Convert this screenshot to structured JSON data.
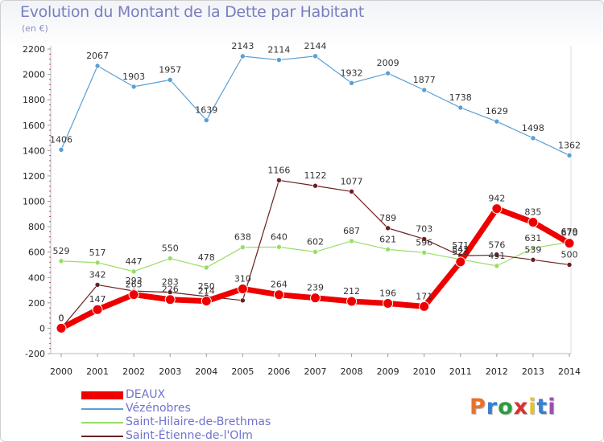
{
  "header": {
    "title": "Evolution du Montant de la Dette par Habitant",
    "unit": "(en €)"
  },
  "logo": {
    "text": "Proxiti",
    "letter_colors": [
      "#e8722c",
      "#3a7fd0",
      "#2c9b3e",
      "#d8322f",
      "#e8c02c",
      "#3a7fd0",
      "#9b4fb0"
    ]
  },
  "chart_data": {
    "type": "line",
    "title": "Evolution du Montant de la Dette par Habitant",
    "ylabel": "(en €)",
    "xlabel": "",
    "x": [
      "2000",
      "2001",
      "2002",
      "2003",
      "2004",
      "2005",
      "2006",
      "2007",
      "2008",
      "2009",
      "2010",
      "2011",
      "2012",
      "2013",
      "2014"
    ],
    "yticks": [
      "-200",
      "0",
      "200",
      "400",
      "600",
      "800",
      "1000",
      "1200",
      "1400",
      "1600",
      "1800",
      "2000",
      "2200"
    ],
    "ylim": [
      -200,
      2200
    ],
    "grid": false,
    "legend_position": "bottom-left",
    "series": [
      {
        "name": "DEAUX",
        "color": "#ee0000",
        "values": [
          0,
          147,
          265,
          226,
          214,
          310,
          264,
          239,
          212,
          196,
          171,
          523,
          942,
          835,
          670
        ],
        "labels": [
          "0",
          "147",
          "265",
          "226",
          "214",
          "310",
          "264",
          "239",
          "212",
          "196",
          "171",
          "523",
          "942",
          "835",
          "670"
        ]
      },
      {
        "name": "Vézénobres",
        "color": "#5a9fd4",
        "values": [
          1406,
          2067,
          1903,
          1957,
          1639,
          2143,
          2114,
          2144,
          1932,
          2009,
          1877,
          1738,
          1629,
          1498,
          1362
        ],
        "labels": [
          "1406",
          "2067",
          "1903",
          "1957",
          "1639",
          "2143",
          "2114",
          "2144",
          "1932",
          "2009",
          "1877",
          "1738",
          "1629",
          "1498",
          "1362"
        ]
      },
      {
        "name": "Saint-Hilaire-de-Brethmas",
        "color": "#99dd66",
        "values": [
          529,
          517,
          447,
          550,
          478,
          638,
          640,
          602,
          687,
          621,
          596,
          542,
          491,
          631,
          679
        ],
        "labels": [
          "529",
          "517",
          "447",
          "550",
          "478",
          "638",
          "640",
          "602",
          "687",
          "621",
          "596",
          "542",
          "491",
          "631",
          "679"
        ]
      },
      {
        "name": "Saint-Étienne-de-l'Olm",
        "color": "#6b1f1f",
        "values": [
          0,
          342,
          293,
          283,
          250,
          219,
          1166,
          1122,
          1077,
          789,
          703,
          571,
          576,
          539,
          500
        ],
        "labels": [
          "0",
          "342",
          "293",
          "283",
          "250",
          "",
          "1166",
          "1122",
          "1077",
          "789",
          "703",
          "571",
          "576",
          "539",
          "500"
        ]
      }
    ]
  }
}
